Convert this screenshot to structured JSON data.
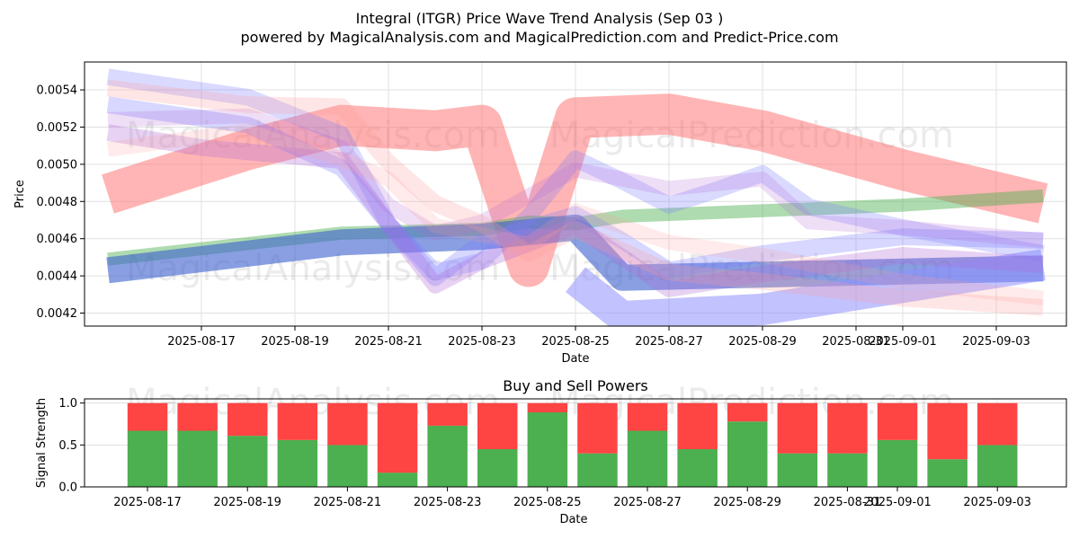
{
  "chart_data": [
    {
      "type": "line",
      "title": "Integral (ITGR) Price Wave Trend Analysis (Sep 03 )",
      "subtitle": "powered by MagicalAnalysis.com and MagicalPrediction.com and Predict-Price.com",
      "xlabel": "Date",
      "ylabel": "Price",
      "x_range": [
        "2025-08-14T12:00",
        "2025-09-04T12:00"
      ],
      "ylim": [
        0.00413,
        0.00555
      ],
      "x_ticks": [
        "2025-08-17",
        "2025-08-19",
        "2025-08-21",
        "2025-08-23",
        "2025-08-25",
        "2025-08-27",
        "2025-08-29",
        "2025-08-31",
        "2025-09-01",
        "2025-09-03"
      ],
      "y_ticks": [
        "0.0042",
        "0.0044",
        "0.0046",
        "0.0048",
        "0.0050",
        "0.0052",
        "0.0054"
      ],
      "watermarks": [
        "MagicalAnalysis.com",
        "MagicalPrediction.com",
        "MagicalAnalysis.com",
        "MagicalPrediction.com"
      ],
      "grid": true,
      "series": [
        {
          "name": "red-main",
          "color": "#ff6b6b",
          "opacity": 0.5,
          "width_price": 0.00022,
          "points": [
            [
              "2025-08-15",
              0.00484
            ],
            [
              "2025-08-18",
              0.00508
            ],
            [
              "2025-08-20",
              0.00521
            ],
            [
              "2025-08-22",
              0.00518
            ],
            [
              "2025-08-23",
              0.00521
            ],
            [
              "2025-08-24",
              0.00445
            ],
            [
              "2025-08-25",
              0.00525
            ],
            [
              "2025-08-27",
              0.00527
            ],
            [
              "2025-08-29",
              0.00518
            ],
            [
              "2025-09-01",
              0.00497
            ],
            [
              "2025-09-04",
              0.00479
            ]
          ]
        },
        {
          "name": "green-main",
          "color": "#4caf50",
          "opacity": 0.45,
          "width_price": 7e-05,
          "points": [
            [
              "2025-08-15",
              0.00449
            ],
            [
              "2025-08-20",
              0.00463
            ],
            [
              "2025-08-23",
              0.00465
            ],
            [
              "2025-08-24",
              0.00469
            ],
            [
              "2025-08-25",
              0.00468
            ],
            [
              "2025-08-26",
              0.00472
            ],
            [
              "2025-09-01",
              0.00478
            ],
            [
              "2025-09-04",
              0.00483
            ]
          ]
        },
        {
          "name": "blue-main",
          "color": "#3a5fcd",
          "opacity": 0.6,
          "width_price": 0.00014,
          "points": [
            [
              "2025-08-15",
              0.00443
            ],
            [
              "2025-08-20",
              0.00458
            ],
            [
              "2025-08-23",
              0.00461
            ],
            [
              "2025-08-25",
              0.00466
            ],
            [
              "2025-08-26",
              0.00439
            ],
            [
              "2025-09-04",
              0.00444
            ]
          ]
        },
        {
          "name": "blue-low",
          "color": "#8f8fff",
          "opacity": 0.55,
          "width_price": 0.00017,
          "points": [
            [
              "2025-08-25",
              0.00438
            ],
            [
              "2025-08-26",
              0.00418
            ],
            [
              "2025-08-29",
              0.00422
            ],
            [
              "2025-09-04",
              0.00446
            ]
          ]
        },
        {
          "name": "blue-wave-1",
          "color": "#7b7bff",
          "opacity": 0.3,
          "width_price": 9e-05,
          "points": [
            [
              "2025-08-15",
              0.00532
            ],
            [
              "2025-08-18",
              0.00521
            ],
            [
              "2025-08-20",
              0.00498
            ],
            [
              "2025-08-21",
              0.00468
            ],
            [
              "2025-08-22",
              0.00439
            ],
            [
              "2025-08-23",
              0.00458
            ],
            [
              "2025-08-25",
              0.00473
            ],
            [
              "2025-08-26",
              0.00459
            ],
            [
              "2025-08-27",
              0.00443
            ],
            [
              "2025-08-29",
              0.00452
            ],
            [
              "2025-09-01",
              0.00461
            ],
            [
              "2025-09-04",
              0.00459
            ]
          ]
        },
        {
          "name": "blue-wave-2",
          "color": "#7b7bff",
          "opacity": 0.28,
          "width_price": 9e-05,
          "points": [
            [
              "2025-08-15",
              0.00547
            ],
            [
              "2025-08-18",
              0.00536
            ],
            [
              "2025-08-20",
              0.00516
            ],
            [
              "2025-08-21",
              0.00468
            ],
            [
              "2025-08-22",
              0.00442
            ],
            [
              "2025-08-23",
              0.00448
            ],
            [
              "2025-08-24",
              0.00472
            ],
            [
              "2025-08-25",
              0.00503
            ],
            [
              "2025-08-26",
              0.00491
            ],
            [
              "2025-08-27",
              0.00478
            ],
            [
              "2025-08-28",
              0.00486
            ],
            [
              "2025-08-29",
              0.00495
            ],
            [
              "2025-08-30",
              0.00477
            ],
            [
              "2025-09-01",
              0.00466
            ],
            [
              "2025-09-04",
              0.00452
            ]
          ]
        },
        {
          "name": "purple-wave-1",
          "color": "#b06ad6",
          "opacity": 0.3,
          "width_price": 9e-05,
          "points": [
            [
              "2025-08-15",
              0.00517
            ],
            [
              "2025-08-17",
              0.00509
            ],
            [
              "2025-08-20",
              0.00502
            ],
            [
              "2025-08-21",
              0.00468
            ],
            [
              "2025-08-22",
              0.00435
            ],
            [
              "2025-08-23",
              0.00448
            ],
            [
              "2025-08-25",
              0.00467
            ],
            [
              "2025-08-27",
              0.00433
            ],
            [
              "2025-08-29",
              0.00441
            ],
            [
              "2025-09-01",
              0.00451
            ],
            [
              "2025-09-04",
              0.00446
            ]
          ]
        },
        {
          "name": "purple-wave-2",
          "color": "#b06ad6",
          "opacity": 0.22,
          "width_price": 8e-05,
          "points": [
            [
              "2025-08-15",
              0.00524
            ],
            [
              "2025-08-18",
              0.00526
            ],
            [
              "2025-08-20",
              0.00509
            ],
            [
              "2025-08-21",
              0.00478
            ],
            [
              "2025-08-22",
              0.00463
            ],
            [
              "2025-08-23",
              0.00469
            ],
            [
              "2025-08-25",
              0.00497
            ],
            [
              "2025-08-26",
              0.00492
            ],
            [
              "2025-08-27",
              0.00487
            ],
            [
              "2025-08-29",
              0.00492
            ],
            [
              "2025-08-30",
              0.00469
            ],
            [
              "2025-09-01",
              0.00466
            ],
            [
              "2025-09-04",
              0.00459
            ]
          ]
        },
        {
          "name": "pink-wave-1",
          "color": "#ff9a9a",
          "opacity": 0.25,
          "width_price": 9e-05,
          "points": [
            [
              "2025-08-15",
              0.00541
            ],
            [
              "2025-08-18",
              0.00532
            ],
            [
              "2025-08-20",
              0.00531
            ],
            [
              "2025-08-21",
              0.00501
            ],
            [
              "2025-08-22",
              0.00479
            ],
            [
              "2025-08-23",
              0.00468
            ],
            [
              "2025-08-24",
              0.00452
            ],
            [
              "2025-08-25",
              0.00465
            ],
            [
              "2025-08-27",
              0.00442
            ],
            [
              "2025-08-29",
              0.00437
            ],
            [
              "2025-09-01",
              0.00428
            ],
            [
              "2025-09-04",
              0.00423
            ]
          ]
        },
        {
          "name": "pink-wave-2",
          "color": "#ff9a9a",
          "opacity": 0.2,
          "width_price": 8e-05,
          "points": [
            [
              "2025-08-15",
              0.00508
            ],
            [
              "2025-08-18",
              0.00518
            ],
            [
              "2025-08-20",
              0.00503
            ],
            [
              "2025-08-21",
              0.00492
            ],
            [
              "2025-08-22",
              0.00467
            ],
            [
              "2025-08-23",
              0.00462
            ],
            [
              "2025-08-24",
              0.00457
            ],
            [
              "2025-08-25",
              0.00475
            ],
            [
              "2025-08-27",
              0.00458
            ],
            [
              "2025-08-29",
              0.00451
            ],
            [
              "2025-09-01",
              0.00437
            ],
            [
              "2025-09-04",
              0.00428
            ]
          ]
        }
      ]
    },
    {
      "type": "bar",
      "title": "Buy and Sell Powers",
      "xlabel": "Date",
      "ylabel": "Signal Strength",
      "ylim": [
        0,
        1.05
      ],
      "y_ticks": [
        "0.0",
        "0.5",
        "1.0"
      ],
      "x_ticks": [
        "2025-08-17",
        "2025-08-19",
        "2025-08-21",
        "2025-08-23",
        "2025-08-25",
        "2025-08-27",
        "2025-08-29",
        "2025-08-31",
        "2025-09-01",
        "2025-09-03"
      ],
      "buy_color": "#4caf50",
      "sell_color": "#ff4444",
      "categories": [
        "2025-08-17",
        "2025-08-18",
        "2025-08-19",
        "2025-08-20",
        "2025-08-21",
        "2025-08-22",
        "2025-08-23",
        "2025-08-24",
        "2025-08-25",
        "2025-08-26",
        "2025-08-27",
        "2025-08-28",
        "2025-08-29",
        "2025-08-30",
        "2025-08-31",
        "2025-09-01",
        "2025-09-02",
        "2025-09-03"
      ],
      "series": [
        {
          "name": "Buy",
          "values": [
            0.67,
            0.67,
            0.61,
            0.56,
            0.5,
            0.17,
            0.73,
            0.45,
            0.89,
            0.4,
            0.67,
            0.45,
            0.78,
            0.4,
            0.4,
            0.56,
            0.33,
            0.5
          ]
        },
        {
          "name": "Sell",
          "values": [
            0.33,
            0.33,
            0.39,
            0.44,
            0.5,
            0.83,
            0.27,
            0.55,
            0.11,
            0.6,
            0.33,
            0.55,
            0.22,
            0.6,
            0.6,
            0.44,
            0.67,
            0.5
          ]
        }
      ]
    }
  ]
}
